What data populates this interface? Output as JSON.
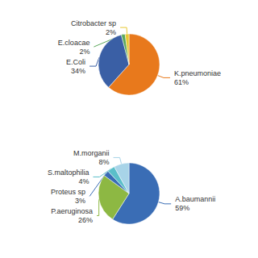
{
  "chart_data": [
    {
      "type": "pie",
      "categories": [
        "K.pneumoniae",
        "E.Coli",
        "E.cloacae",
        "Citrobacter sp"
      ],
      "values": [
        61,
        34,
        2,
        2
      ],
      "value_labels": [
        "61%",
        "34%",
        "2%",
        "2%"
      ],
      "colors": [
        "#E8791C",
        "#3A5FA5",
        "#5BA85B",
        "#E8C832"
      ],
      "data_labels": true
    },
    {
      "type": "pie",
      "categories": [
        "A.baumannii",
        "P.aeruginosa",
        "Proteus sp",
        "S.maltophilia",
        "M.morganii"
      ],
      "values": [
        59,
        26,
        3,
        4,
        8
      ],
      "value_labels": [
        "59%",
        "26%",
        "3%",
        "4%",
        "8%"
      ],
      "colors": [
        "#3A6DB5",
        "#8DB843",
        "#3A6DB5",
        "#5BBFC9",
        "#A8D4E8"
      ],
      "data_labels": true
    }
  ]
}
